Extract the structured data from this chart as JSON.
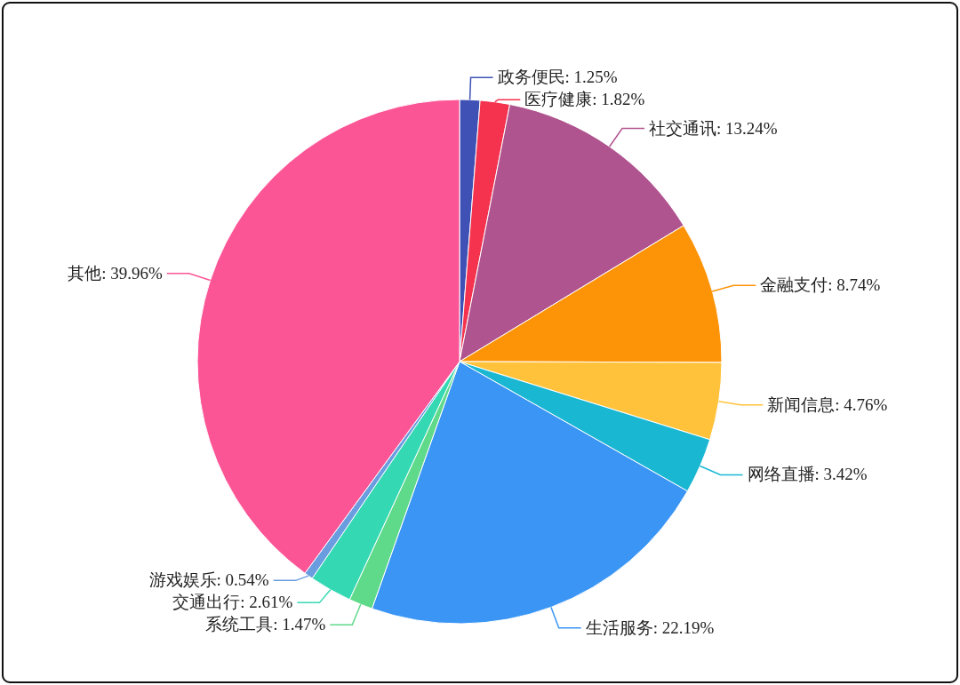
{
  "chart_data": {
    "type": "pie",
    "categories": [
      "政务便民",
      "医疗健康",
      "社交通讯",
      "金融支付",
      "新闻信息",
      "网络直播",
      "生活服务",
      "系统工具",
      "交通出行",
      "游戏娱乐",
      "其他"
    ],
    "values": [
      1.25,
      1.82,
      13.24,
      8.74,
      4.76,
      3.42,
      22.19,
      1.47,
      2.61,
      0.54,
      39.96
    ],
    "colors": [
      "#3f51b5",
      "#f5334f",
      "#b0548f",
      "#fd9408",
      "#ffc23a",
      "#1ab7d3",
      "#3a95f5",
      "#5fd98a",
      "#34d9b3",
      "#6a9de0",
      "#fc5596"
    ],
    "value_labels": [
      ": 1.25%",
      ": 1.82%",
      ": 13.24%",
      ": 8.74%",
      ": 4.76%",
      ": 3.42%",
      ": 22.19%",
      ": 1.47%",
      ": 2.61%",
      ": 0.54%",
      ": 39.96%"
    ]
  }
}
